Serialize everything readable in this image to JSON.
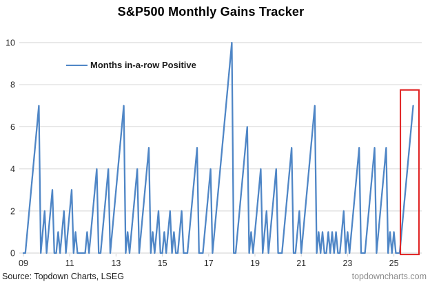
{
  "title": "S&P500 Monthly Gains Tracker",
  "legend": {
    "label": "Months in-a-row Positive"
  },
  "footer": {
    "source": "Source: Topdown Charts, LSEG",
    "watermark": "topdowncharts.com"
  },
  "colors": {
    "line": "#4f86c6",
    "grid": "#d9d9d9",
    "highlight": "#e02222",
    "axis_text": "#262626",
    "watermark": "#8c8c8c"
  },
  "chart_data": {
    "type": "line",
    "title": "S&P500 Monthly Gains Tracker",
    "series_name": "Months in-a-row Positive",
    "x_start": "2009-01",
    "x_end": "2025-11",
    "x_frequency": "monthly",
    "x_tick_labels": [
      "09",
      "11",
      "13",
      "15",
      "17",
      "19",
      "21",
      "23",
      "25"
    ],
    "x_tick_interval_months": 24,
    "y_ticks": [
      0,
      2,
      4,
      6,
      8,
      10
    ],
    "ylim": [
      0,
      10
    ],
    "grid": "horizontal-only",
    "legend_position": "top-left-inside",
    "values": [
      0,
      0,
      1,
      2,
      3,
      4,
      5,
      6,
      7,
      0,
      1,
      2,
      0,
      1,
      2,
      3,
      0,
      0,
      1,
      0,
      1,
      2,
      0,
      1,
      2,
      3,
      0,
      1,
      0,
      0,
      0,
      0,
      0,
      1,
      0,
      1,
      2,
      3,
      4,
      0,
      0,
      1,
      2,
      3,
      4,
      0,
      1,
      2,
      3,
      4,
      5,
      6,
      7,
      0,
      1,
      0,
      1,
      2,
      3,
      4,
      0,
      1,
      2,
      3,
      4,
      5,
      0,
      1,
      0,
      1,
      2,
      0,
      0,
      1,
      0,
      1,
      2,
      0,
      1,
      0,
      0,
      1,
      2,
      0,
      0,
      0,
      1,
      2,
      3,
      4,
      5,
      0,
      0,
      0,
      1,
      2,
      3,
      4,
      0,
      1,
      2,
      3,
      4,
      5,
      6,
      7,
      8,
      9,
      10,
      0,
      0,
      1,
      2,
      3,
      4,
      5,
      6,
      0,
      1,
      0,
      1,
      2,
      3,
      4,
      0,
      1,
      2,
      0,
      1,
      2,
      3,
      4,
      0,
      0,
      0,
      1,
      2,
      3,
      4,
      5,
      0,
      0,
      1,
      2,
      0,
      1,
      2,
      3,
      4,
      5,
      6,
      7,
      0,
      1,
      0,
      1,
      0,
      0,
      1,
      0,
      1,
      0,
      1,
      0,
      0,
      1,
      2,
      0,
      1,
      0,
      1,
      2,
      3,
      4,
      5,
      0,
      0,
      0,
      1,
      2,
      3,
      4,
      5,
      0,
      1,
      2,
      3,
      4,
      5,
      0,
      1,
      0,
      1,
      0,
      0,
      0,
      1,
      2,
      3,
      4,
      5,
      6,
      7
    ],
    "highlight_box": {
      "month_start_index": 195.4,
      "month_end_index": 205.0,
      "value_top": 7.75,
      "value_bottom": -0.07
    }
  }
}
